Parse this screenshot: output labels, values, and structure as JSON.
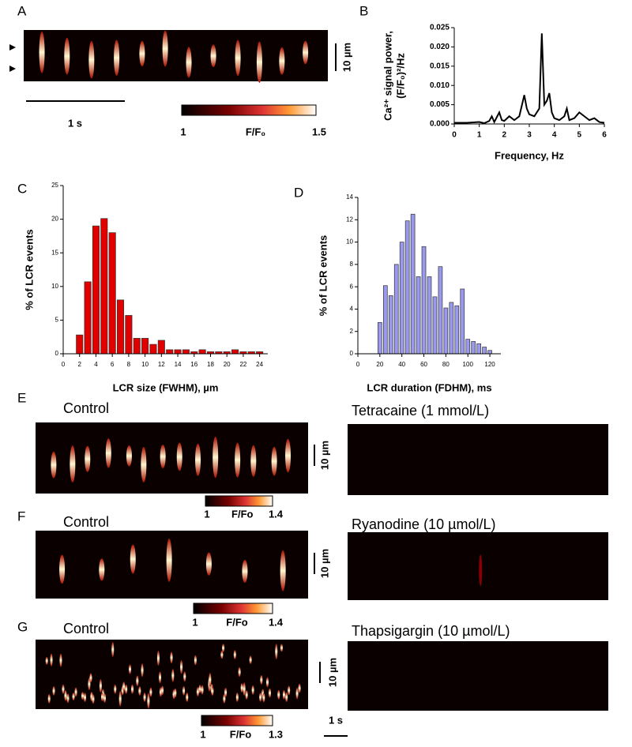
{
  "chart_data": [
    {
      "type": "line",
      "label": "B",
      "ylabel": [
        "Ca²⁺ signal power,",
        "(F/F₀)²/Hz"
      ],
      "xlabel": "Frequency, Hz",
      "color": "#000000",
      "x": [
        0,
        0.5,
        1,
        1.2,
        1.4,
        1.5,
        1.6,
        1.8,
        1.9,
        2,
        2.2,
        2.4,
        2.6,
        2.8,
        2.9,
        3,
        3.2,
        3.4,
        3.5,
        3.6,
        3.7,
        3.8,
        3.9,
        4,
        4.2,
        4.4,
        4.5,
        4.6,
        4.8,
        5,
        5.2,
        5.4,
        5.6,
        5.8,
        6
      ],
      "values": [
        0.0003,
        0.0003,
        0.0005,
        0.0002,
        0.0008,
        0.002,
        0.0005,
        0.003,
        0.001,
        0.0008,
        0.002,
        0.001,
        0.002,
        0.0075,
        0.004,
        0.0025,
        0.002,
        0.004,
        0.0235,
        0.005,
        0.006,
        0.008,
        0.003,
        0.0015,
        0.001,
        0.002,
        0.004,
        0.001,
        0.0015,
        0.003,
        0.002,
        0.001,
        0.0015,
        0.0005,
        0.0003
      ],
      "xlim": [
        0,
        6
      ],
      "xticks": [
        0,
        1,
        2,
        3,
        4,
        5,
        6
      ],
      "ylim": [
        0,
        0.025
      ],
      "yticks": [
        {
          "value": 0,
          "label": "0.000"
        },
        {
          "value": 0.005,
          "label": "0.005"
        },
        {
          "value": 0.01,
          "label": "0.010"
        },
        {
          "value": 0.015,
          "label": "0.015"
        },
        {
          "value": 0.02,
          "label": "0.020"
        },
        {
          "value": 0.025,
          "label": "0.025"
        }
      ]
    },
    {
      "type": "histogram",
      "label": "C",
      "ylabel": "% of LCR events",
      "xlabel": "LCR size (FWHM), µm",
      "color": "#e00000",
      "bins": [
        1.5,
        2.5,
        3.5,
        4.5,
        5.5,
        6.5,
        7.5,
        8.5,
        9.5,
        10.5,
        11.5,
        12.5,
        13.5,
        14.5,
        15.5,
        16.5,
        17.5,
        18.5,
        19.5,
        20.5,
        21.5,
        22.5,
        23.5,
        24.5
      ],
      "values": [
        2.8,
        10.7,
        19,
        20.1,
        18,
        8,
        5.7,
        2.3,
        2.3,
        1.4,
        2,
        0.6,
        0.6,
        0.6,
        0.3,
        0.6,
        0.3,
        0.3,
        0.3,
        0.6,
        0.3,
        0.3,
        0.3
      ],
      "xlim": [
        0,
        25
      ],
      "xticks": [
        0,
        2,
        4,
        6,
        8,
        10,
        12,
        14,
        16,
        18,
        20,
        22,
        24
      ],
      "ylim": [
        0,
        25
      ],
      "yticks": [
        0,
        5,
        10,
        15,
        20,
        25
      ]
    },
    {
      "type": "histogram",
      "label": "D",
      "ylabel": "% of LCR events",
      "xlabel": "LCR duration (FDHM), ms",
      "color": "#9999ee",
      "bins": [
        17.5,
        22.5,
        27.5,
        32.5,
        37.5,
        42.5,
        47.5,
        52.5,
        57.5,
        62.5,
        67.5,
        72.5,
        77.5,
        82.5,
        87.5,
        92.5,
        97.5,
        102.5,
        107.5,
        112.5,
        117.5,
        122.5
      ],
      "values": [
        2.8,
        6.1,
        5.2,
        8,
        10,
        11.9,
        12.5,
        6.9,
        9.6,
        6.9,
        5.1,
        7.8,
        4.1,
        4.6,
        4.3,
        5.8,
        1.3,
        1.1,
        0.9,
        0.6,
        0.3
      ],
      "xlim": [
        0,
        130
      ],
      "xticks": [
        0,
        20,
        40,
        60,
        80,
        100,
        120
      ],
      "ylim": [
        0,
        14
      ],
      "yticks": [
        0,
        2,
        4,
        6,
        8,
        10,
        12,
        14
      ]
    }
  ],
  "image_panels": [
    {
      "label": "A",
      "scale_label": "10 µm",
      "time_label": "1 s",
      "colorbar": {
        "min": 1,
        "unit": "F/F₀",
        "max": 1.5
      }
    },
    {
      "label": "E",
      "left_title": "Control",
      "right_title": "Tetracaine (1 mmol/L)",
      "scale_label": "10 µm",
      "colorbar": {
        "min": 1,
        "unit": "F/Fo",
        "max": 1.4
      }
    },
    {
      "label": "F",
      "left_title": "Control",
      "right_title": "Ryanodine (10 µmol/L)",
      "scale_label": "10 µm",
      "colorbar": {
        "min": 1,
        "unit": "F/Fo",
        "max": 1.4
      }
    },
    {
      "label": "G",
      "left_title": "Control",
      "right_title": "Thapsigargin (10 µmol/L)",
      "scale_label": "10 µm",
      "time_label": "1 s",
      "colorbar": {
        "min": 1,
        "unit": "F/Fo",
        "max": 1.3
      }
    }
  ]
}
